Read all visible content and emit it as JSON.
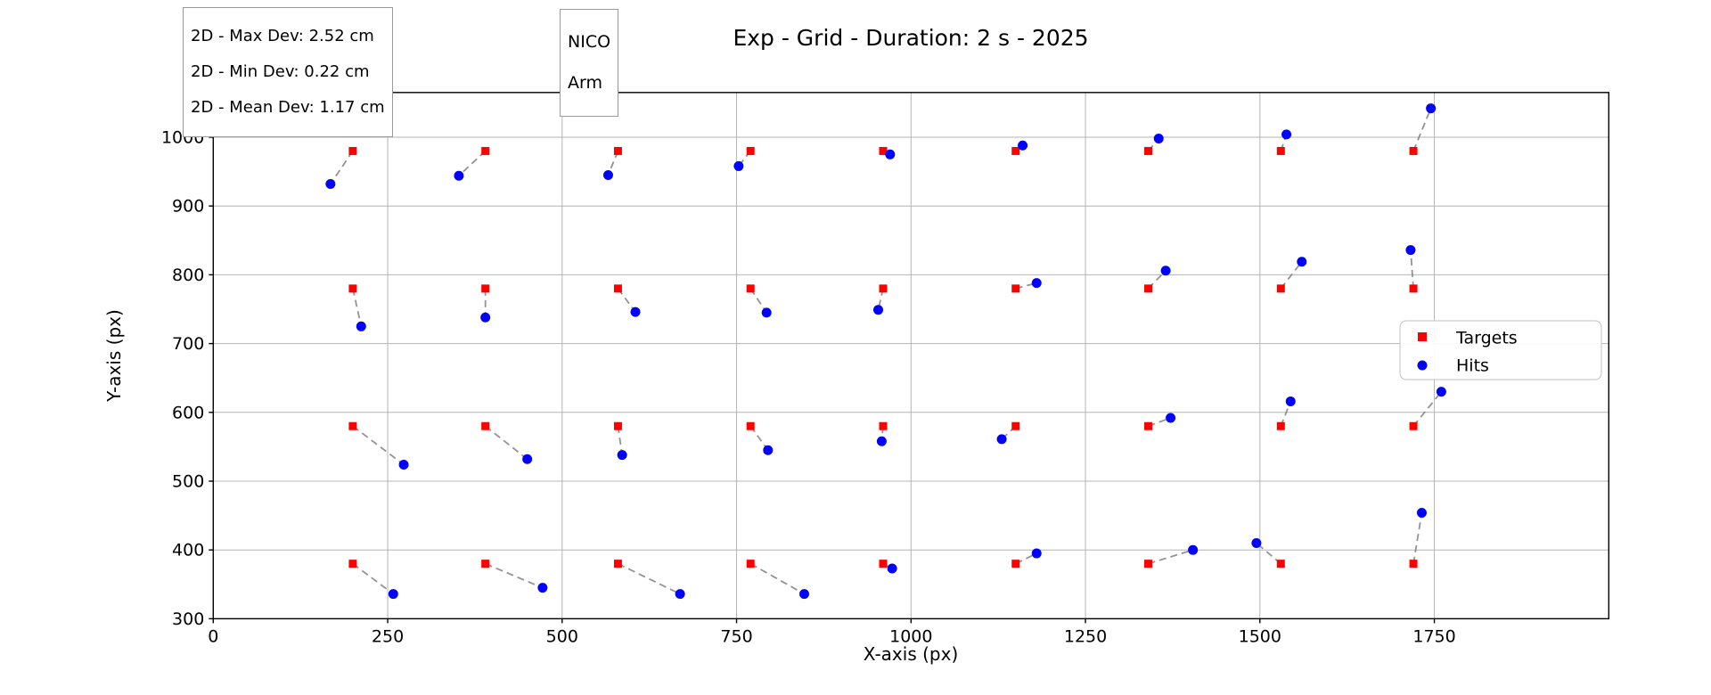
{
  "annotations": {
    "stats_box": {
      "lines": [
        "2D - Max Dev: 2.52 cm",
        "2D - Min Dev: 0.22 cm",
        "2D - Mean Dev: 1.17 cm"
      ]
    },
    "robot_box": {
      "lines": [
        "NICO",
        "Arm"
      ]
    }
  },
  "chart_data": {
    "type": "scatter",
    "title": "Exp - Grid - Duration: 2 s - 2025",
    "xlabel": "X-axis (px)",
    "ylabel": "Y-axis (px)",
    "xlim": [
      0,
      2000
    ],
    "ylim": [
      300,
      1065
    ],
    "xticks": [
      0,
      250,
      500,
      750,
      1000,
      1250,
      1500,
      1750
    ],
    "yticks": [
      300,
      400,
      500,
      600,
      700,
      800,
      900,
      1000
    ],
    "grid": true,
    "legend": {
      "position": "center-right",
      "entries": [
        "Targets",
        "Hits"
      ]
    },
    "connectors": {
      "style": "dashed",
      "color": "#808080",
      "pairing": "index"
    },
    "series": [
      {
        "name": "Targets",
        "marker": "square",
        "color": "#ff0000",
        "points": [
          [
            200,
            980
          ],
          [
            390,
            980
          ],
          [
            580,
            980
          ],
          [
            770,
            980
          ],
          [
            960,
            980
          ],
          [
            1150,
            980
          ],
          [
            1340,
            980
          ],
          [
            1530,
            980
          ],
          [
            1720,
            980
          ],
          [
            200,
            780
          ],
          [
            390,
            780
          ],
          [
            580,
            780
          ],
          [
            770,
            780
          ],
          [
            960,
            780
          ],
          [
            1150,
            780
          ],
          [
            1340,
            780
          ],
          [
            1530,
            780
          ],
          [
            1720,
            780
          ],
          [
            200,
            580
          ],
          [
            390,
            580
          ],
          [
            580,
            580
          ],
          [
            770,
            580
          ],
          [
            960,
            580
          ],
          [
            1150,
            580
          ],
          [
            1340,
            580
          ],
          [
            1530,
            580
          ],
          [
            1720,
            580
          ],
          [
            200,
            380
          ],
          [
            390,
            380
          ],
          [
            580,
            380
          ],
          [
            770,
            380
          ],
          [
            960,
            380
          ],
          [
            1150,
            380
          ],
          [
            1340,
            380
          ],
          [
            1530,
            380
          ],
          [
            1720,
            380
          ]
        ]
      },
      {
        "name": "Hits",
        "marker": "circle",
        "color": "#0000ff",
        "points": [
          [
            168,
            932
          ],
          [
            352,
            944
          ],
          [
            566,
            945
          ],
          [
            753,
            958
          ],
          [
            970,
            975
          ],
          [
            1160,
            988
          ],
          [
            1355,
            998
          ],
          [
            1538,
            1004
          ],
          [
            1745,
            1042
          ],
          [
            212,
            725
          ],
          [
            390,
            738
          ],
          [
            605,
            746
          ],
          [
            793,
            745
          ],
          [
            953,
            749
          ],
          [
            1180,
            788
          ],
          [
            1365,
            806
          ],
          [
            1560,
            819
          ],
          [
            1716,
            836
          ],
          [
            273,
            524
          ],
          [
            450,
            532
          ],
          [
            586,
            538
          ],
          [
            795,
            545
          ],
          [
            958,
            558
          ],
          [
            1130,
            561
          ],
          [
            1372,
            592
          ],
          [
            1544,
            616
          ],
          [
            1760,
            630
          ],
          [
            258,
            336
          ],
          [
            472,
            345
          ],
          [
            669,
            336
          ],
          [
            847,
            336
          ],
          [
            973,
            373
          ],
          [
            1180,
            395
          ],
          [
            1404,
            400
          ],
          [
            1495,
            410
          ],
          [
            1732,
            454
          ]
        ]
      }
    ],
    "style_colors": {
      "grid": "#b4b4b4",
      "spine": "#000000",
      "legend_border": "#cccccc",
      "targets": "#ff0000",
      "hits": "#0000ff",
      "connector": "#808080"
    }
  }
}
